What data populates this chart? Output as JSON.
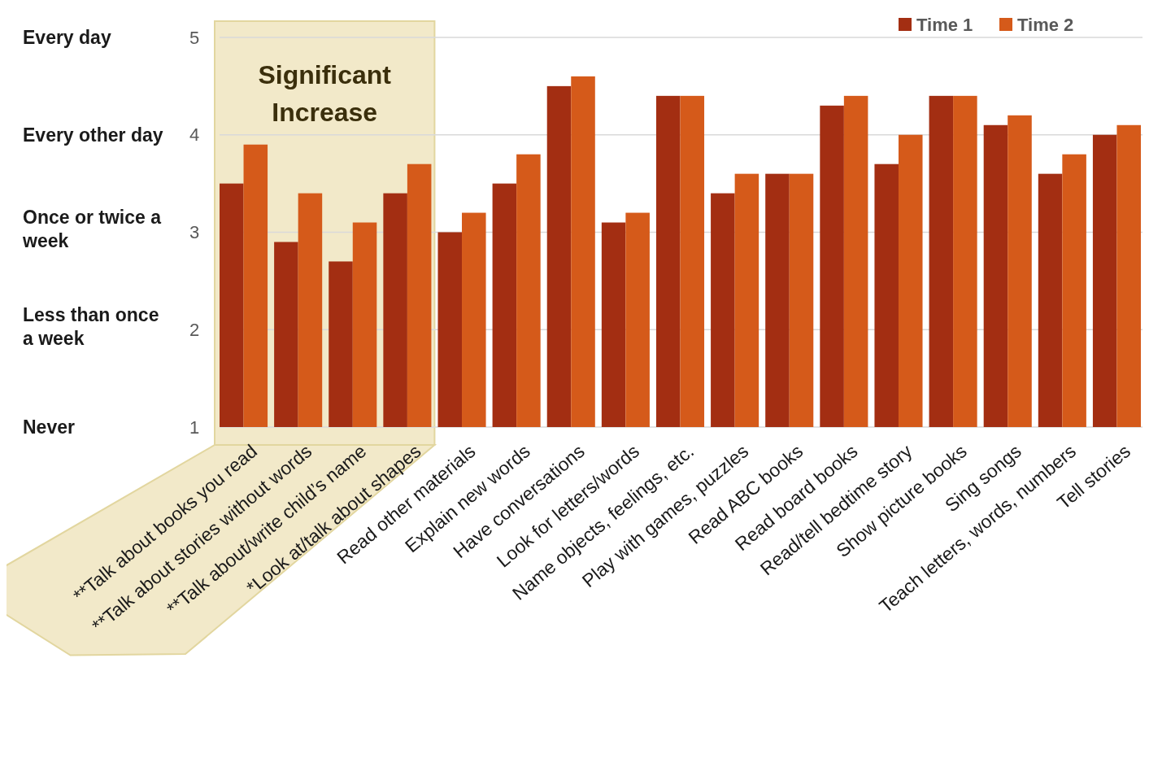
{
  "chart_data": {
    "type": "bar",
    "categories": [
      "**Talk about books you read",
      "**Talk about stories without words",
      "**Talk about/write child’s name",
      "*Look at/talk about shapes",
      "Read other materials",
      "Explain new words",
      "Have conversations",
      "Look for letters/words",
      "Name objects, feelings, etc.",
      "Play with games, puzzles",
      "Read ABC books",
      "Read board books",
      "Read/tell bedtime story",
      "Show picture books",
      "Sing songs",
      "Teach letters, words, numbers",
      "Tell stories"
    ],
    "series": [
      {
        "name": "Time 1",
        "color": "#a32e12",
        "values": [
          3.5,
          2.9,
          2.7,
          3.4,
          3.0,
          3.5,
          4.5,
          3.1,
          4.4,
          3.4,
          3.6,
          4.3,
          3.7,
          4.4,
          4.1,
          3.6,
          4.0
        ]
      },
      {
        "name": "Time 2",
        "color": "#d55a1a",
        "values": [
          3.9,
          3.4,
          3.1,
          3.7,
          3.2,
          3.8,
          4.6,
          3.2,
          4.4,
          3.6,
          3.6,
          4.4,
          4.0,
          4.4,
          4.2,
          3.8,
          4.1
        ]
      }
    ],
    "ylim": [
      1,
      5
    ],
    "yticks": [
      1,
      2,
      3,
      4,
      5
    ],
    "annotations": [
      "Every day",
      "Every other day",
      "Once or twice a week",
      "Less than once a week",
      "Never"
    ],
    "bands": [
      {
        "axis": "x",
        "from": "**Talk about books you read",
        "to": "*Look at/talk about shapes",
        "label": "Significant Increase",
        "color": "#f2e9c9"
      }
    ],
    "grid": "y",
    "legend": "top right"
  }
}
